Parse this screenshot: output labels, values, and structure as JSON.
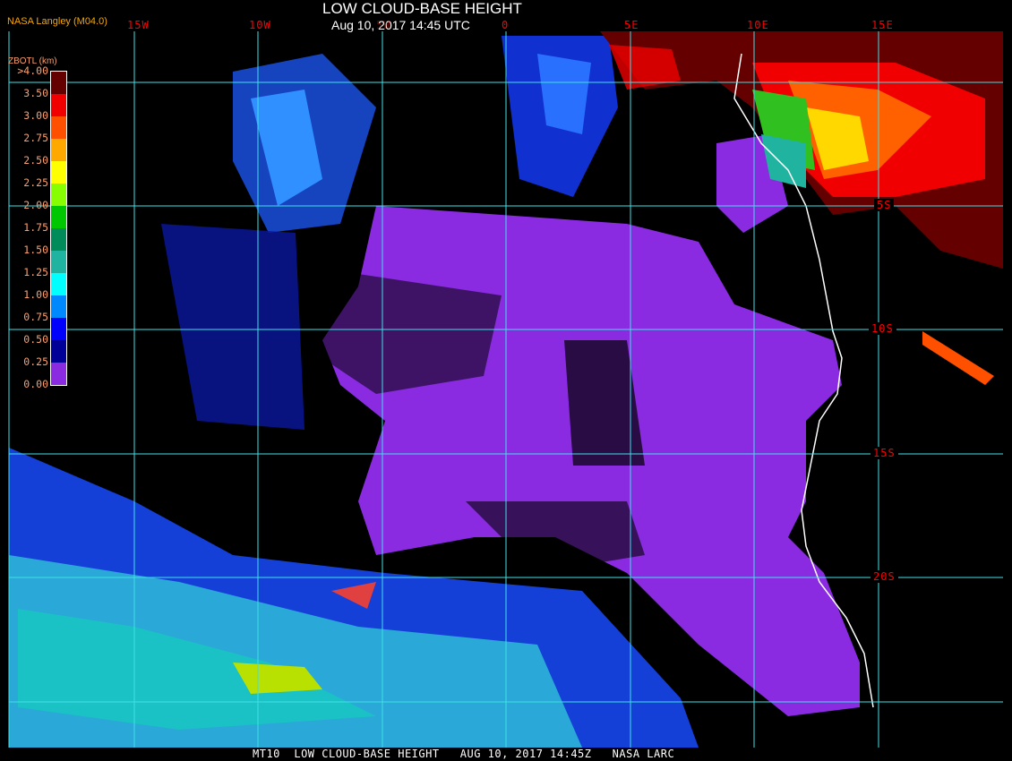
{
  "header": {
    "title": "LOW CLOUD-BASE HEIGHT",
    "datetime": "Aug 10, 2017 14:45 UTC",
    "credit": "NASA Langley (M04.0)"
  },
  "grid": {
    "longitudes": [
      "15W",
      "10W",
      "5W",
      "0",
      "5E",
      "10E",
      "15E"
    ],
    "latitudes": [
      "5S",
      "10S",
      "15S",
      "20S"
    ],
    "line_color": "#40e0e8",
    "label_color": "#ff0000"
  },
  "legend": {
    "title": "ZBOTL (km)",
    "labels": [
      ">4.00",
      "3.50",
      "3.00",
      "2.75",
      "2.50",
      "2.25",
      "2.00",
      "1.75",
      "1.50",
      "1.25",
      "1.00",
      "0.75",
      "0.50",
      "0.25",
      "0.00"
    ],
    "colors": [
      "#640000",
      "#640000",
      "#f00000",
      "#ff5000",
      "#ffa800",
      "#ffff00",
      "#88ff00",
      "#00c800",
      "#008c5a",
      "#20b4a0",
      "#00ffff",
      "#0088ff",
      "#0000ff",
      "#000099",
      "#8a2be2"
    ]
  },
  "footer": {
    "text": "MT10  LOW CLOUD-BASE HEIGHT   AUG 10, 2017 14:45Z   NASA LARC"
  }
}
